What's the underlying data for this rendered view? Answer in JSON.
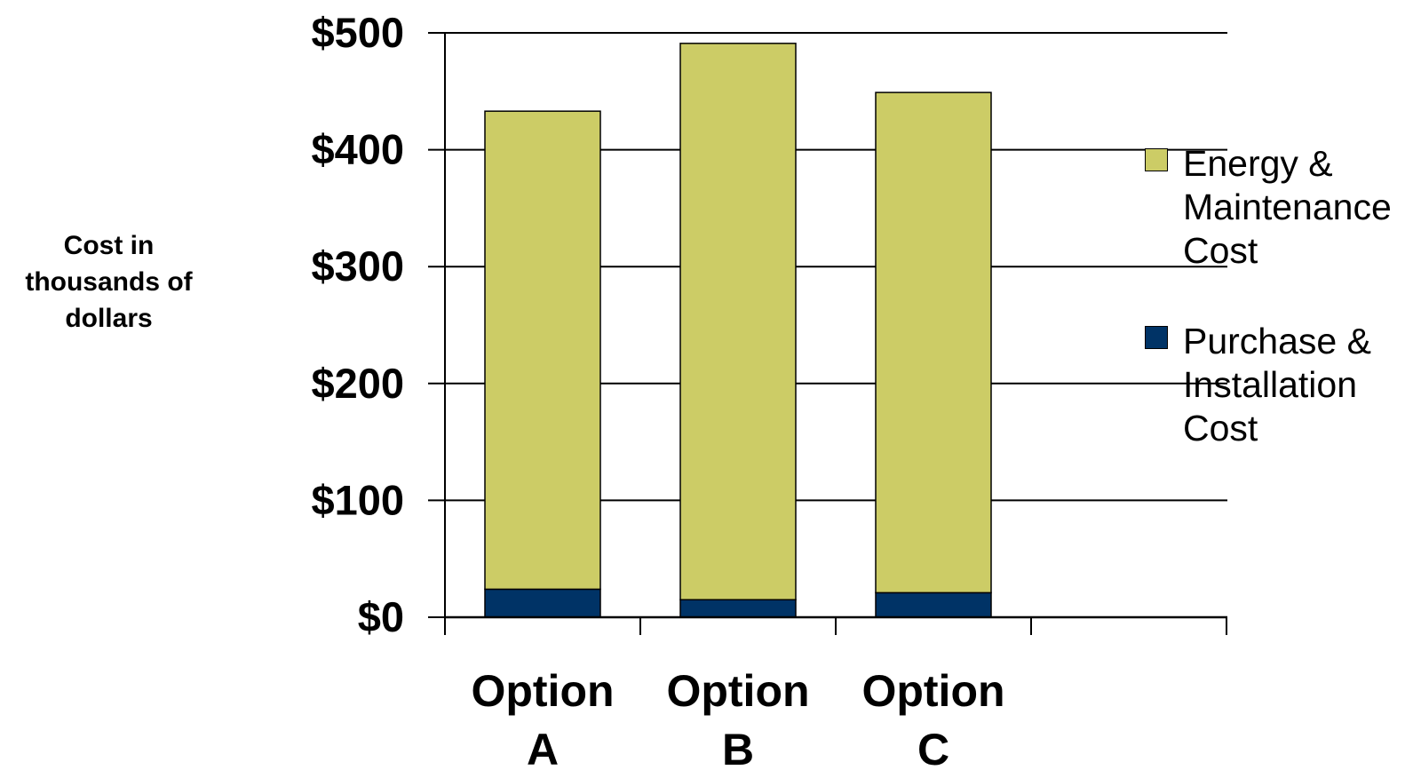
{
  "chart_data": {
    "type": "bar",
    "stacked": true,
    "title": "",
    "xlabel": "",
    "ylabel": "Cost in\nthousands of\ndollars",
    "categories": [
      "Option\nA",
      "Option\nB",
      "Option\nC"
    ],
    "series": [
      {
        "name": "Purchase &\nInstallation\nCost",
        "color": "#003366",
        "values": [
          24,
          15,
          21
        ]
      },
      {
        "name": "Energy &\nMaintenance\nCost",
        "color": "#cccc66",
        "values": [
          409,
          476,
          428
        ]
      }
    ],
    "ylim": [
      0,
      500
    ],
    "yticks": [
      0,
      100,
      200,
      300,
      400,
      500
    ],
    "ytick_labels": [
      "$0",
      "$100",
      "$200",
      "$300",
      "$400",
      "$500"
    ],
    "grid": true,
    "legend_position": "right",
    "legend_order": [
      "Energy &\nMaintenance\nCost",
      "Purchase &\nInstallation\nCost"
    ]
  }
}
